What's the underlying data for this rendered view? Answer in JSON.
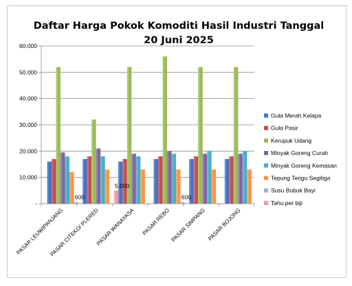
{
  "chart_data": {
    "type": "bar",
    "title": "Daftar Harga Pokok Komoditi Hasil Industri Tanggal",
    "subtitle": "20 Juni 2025",
    "xlabel": "",
    "ylabel": "",
    "ylim": [
      0,
      60000
    ],
    "yticks": [
      "-",
      "10.000",
      "20.000",
      "30.000",
      "40.000",
      "50.000",
      "60.000"
    ],
    "grid": true,
    "legend_position": "right",
    "categories": [
      "PASAR LEUWIPANJANG",
      "PASAR CITEKO/ PLERED",
      "PASAR WANAYASA",
      "PASAR REBO",
      "PASAR SIMPANG",
      "PASAR BOJONG"
    ],
    "series": [
      {
        "name": "Gula Merah Kelapa",
        "color": "#4472c4",
        "values": [
          16000,
          17000,
          16000,
          17000,
          17000,
          17000
        ]
      },
      {
        "name": "Gula Pasir",
        "color": "#c0504d",
        "values": [
          17000,
          18000,
          17000,
          18000,
          18000,
          18000
        ]
      },
      {
        "name": "Kerupuk Udang",
        "color": "#9bbb59",
        "values": [
          52000,
          32000,
          52000,
          56000,
          52000,
          52000
        ]
      },
      {
        "name": "Minyak Goreng Curah",
        "color": "#8064a2",
        "values": [
          19500,
          21000,
          19000,
          20000,
          19000,
          19000
        ]
      },
      {
        "name": "Minyak Goreng  Kemasan",
        "color": "#4bacc6",
        "values": [
          18000,
          18000,
          18000,
          19000,
          20000,
          20000
        ]
      },
      {
        "name": "Tepung Terigu Segitiga",
        "color": "#f79646",
        "values": [
          12000,
          13000,
          13000,
          13000,
          13000,
          13000
        ]
      },
      {
        "name": "Susu Bubuk Bayi",
        "color": "#95b3d7",
        "values": [
          600,
          null,
          null,
          600,
          null,
          null
        ]
      },
      {
        "name": "Tahu per biji",
        "color": "#e6a0a0",
        "values": [
          null,
          5000,
          null,
          null,
          null,
          null
        ]
      }
    ],
    "data_labels": [
      {
        "series": "Susu Bubuk Bayi",
        "category": "PASAR LEUWIPANJANG",
        "text": "600"
      },
      {
        "series": "Tahu per biji",
        "category": "PASAR CITEKO/ PLERED",
        "text": "5.000"
      },
      {
        "series": "Susu Bubuk Bayi",
        "category": "PASAR REBO",
        "text": "600"
      }
    ]
  }
}
